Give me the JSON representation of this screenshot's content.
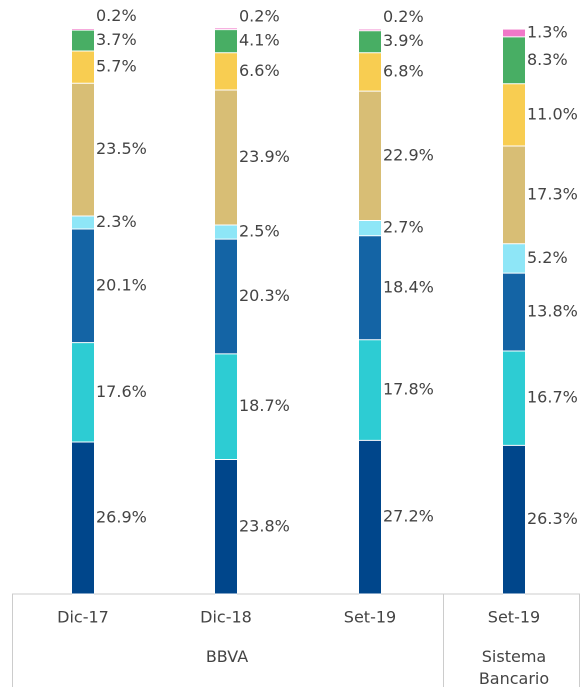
{
  "chart_data": {
    "type": "stacked_bar",
    "categories": [
      "Dic-17",
      "Dic-18",
      "Set-19",
      "Set-19"
    ],
    "group_labels": [
      "BBVA",
      "Sistema Bancario"
    ],
    "ylim": [
      0,
      100
    ],
    "series": [
      {
        "color": "#00468b",
        "values": [
          26.9,
          23.8,
          27.2,
          26.3
        ],
        "value_labels": [
          "26.9%",
          "23.8%",
          "27.2%",
          "26.3%"
        ]
      },
      {
        "color": "#2dccd3",
        "values": [
          17.6,
          18.7,
          17.8,
          16.7
        ],
        "value_labels": [
          "17.6%",
          "18.7%",
          "17.8%",
          "16.7%"
        ]
      },
      {
        "color": "#1464a5",
        "values": [
          20.1,
          20.3,
          18.4,
          13.8
        ],
        "value_labels": [
          "20.1%",
          "20.3%",
          "18.4%",
          "13.8%"
        ]
      },
      {
        "color": "#8ee6f7",
        "values": [
          2.3,
          2.5,
          2.7,
          5.2
        ],
        "value_labels": [
          "2.3%",
          "2.5%",
          "2.7%",
          "5.2%"
        ]
      },
      {
        "color": "#d8be75",
        "values": [
          23.5,
          23.9,
          22.9,
          17.3
        ],
        "value_labels": [
          "23.5%",
          "23.9%",
          "22.9%",
          "17.3%"
        ]
      },
      {
        "color": "#f8cd51",
        "values": [
          5.7,
          6.6,
          6.8,
          11.0
        ],
        "value_labels": [
          "5.7%",
          "6.6%",
          "6.8%",
          "11.0%"
        ]
      },
      {
        "color": "#48ae64",
        "values": [
          3.7,
          4.1,
          3.9,
          8.3
        ],
        "value_labels": [
          "3.7%",
          "4.1%",
          "3.9%",
          "8.3%"
        ]
      },
      {
        "color": "#f078c8",
        "values": [
          0.2,
          0.2,
          0.2,
          1.3
        ],
        "value_labels": [
          "0.2%",
          "0.2%",
          "0.2%",
          "1.3%"
        ]
      }
    ]
  }
}
